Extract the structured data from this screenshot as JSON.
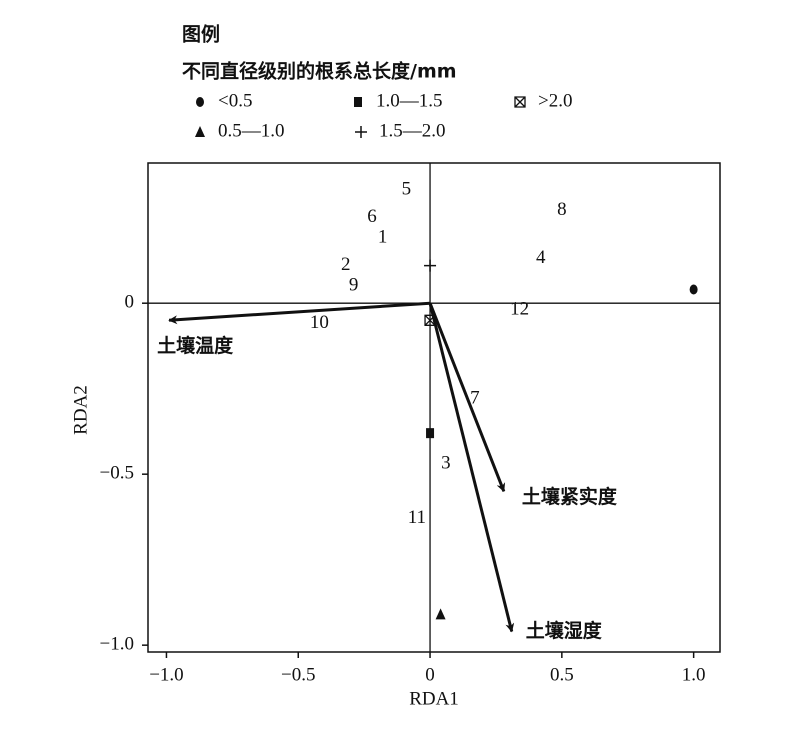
{
  "chart_data": {
    "type": "scatter",
    "legend_title": "图例",
    "legend_subtitle": "不同直径级别的根系总长度/mm",
    "xlabel": "RDA1",
    "ylabel": "RDA2",
    "xlim": [
      -1.07,
      1.1
    ],
    "ylim": [
      -1.02,
      0.41
    ],
    "xticks": [
      {
        "value": -1.0,
        "label": "−1.0"
      },
      {
        "value": -0.5,
        "label": "−0.5"
      },
      0,
      0.5,
      {
        "value": 1.0,
        "label": "1.0"
      }
    ],
    "yticks": [
      0,
      {
        "value": -0.5,
        "label": "−0.5"
      },
      {
        "value": -1.0,
        "label": "−1.0"
      }
    ],
    "series": [
      {
        "name": "<0.5",
        "marker": "circle",
        "color": "#111111",
        "x": [
          1.0
        ],
        "values": [
          0.04
        ]
      },
      {
        "name": "1.0—1.5",
        "marker": "square",
        "color": "#111111",
        "x": [
          0.0
        ],
        "values": [
          -0.38
        ]
      },
      {
        "name": ">2.0",
        "marker": "boxed-x",
        "color": "#111111",
        "x": [
          0.0
        ],
        "values": [
          -0.05
        ]
      },
      {
        "name": "0.5—1.0",
        "marker": "triangle",
        "color": "#111111",
        "x": [
          0.04
        ],
        "values": [
          -0.91
        ]
      },
      {
        "name": "1.5—2.0",
        "marker": "plus",
        "color": "#111111",
        "x": [
          0.0
        ],
        "values": [
          0.11
        ]
      }
    ],
    "vectors": [
      {
        "name": "土壤温度",
        "x": -0.99,
        "y": -0.05
      },
      {
        "name": "土壤紧实度",
        "x": 0.28,
        "y": -0.55
      },
      {
        "name": "土壤湿度",
        "x": 0.31,
        "y": -0.96
      }
    ],
    "sites": {
      "labels": [
        "1",
        "2",
        "3",
        "4",
        "5",
        "6",
        "7",
        "8",
        "9",
        "10",
        "11",
        "12"
      ],
      "x": [
        -0.18,
        -0.32,
        0.06,
        0.42,
        -0.09,
        -0.22,
        0.17,
        0.5,
        -0.29,
        -0.42,
        -0.05,
        0.34
      ],
      "y": [
        0.19,
        0.11,
        -0.47,
        0.13,
        0.33,
        0.25,
        -0.28,
        0.27,
        0.05,
        -0.06,
        -0.63,
        -0.02
      ]
    }
  }
}
